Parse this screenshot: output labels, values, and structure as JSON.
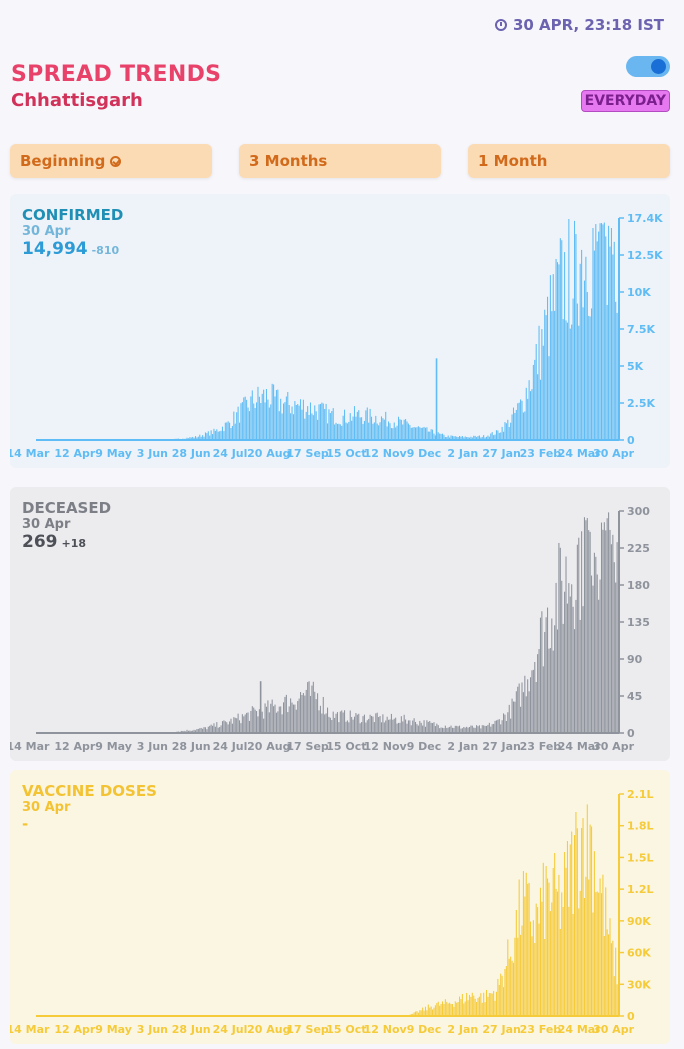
{
  "header": {
    "timestamp": "30 APR, 23:18 IST",
    "title": "SPREAD TRENDS",
    "region": "Chhattisgarh",
    "mode": "EVERYDAY",
    "clock_icon": "clock-icon"
  },
  "ranges": [
    {
      "label": "Beginning",
      "selected": true
    },
    {
      "label": "3 Months",
      "selected": false
    },
    {
      "label": "1 Month",
      "selected": false
    }
  ],
  "charts": {
    "confirmed": {
      "name": "CONFIRMED",
      "date": "30 Apr",
      "value": "14,994",
      "delta": "-810"
    },
    "deceased": {
      "name": "DECEASED",
      "date": "30 Apr",
      "value": "269",
      "delta": "+18"
    },
    "vaccine": {
      "name": "VACCINE DOSES",
      "date": "30 Apr",
      "value": "-"
    }
  },
  "x_ticks": [
    "14 Mar",
    "12 Apr",
    "9 May",
    "3 Jun",
    "28 Jun",
    "24 Jul",
    "20 Aug",
    "17 Sep",
    "15 Oct",
    "12 Nov",
    "9 Dec",
    "2 Jan",
    "27 Jan",
    "23 Feb",
    "24 Mar",
    "30 Apr"
  ],
  "colors": {
    "confirmed": "#5fbcf4",
    "deceased": "#8e939c",
    "vaccine": "#f5cb3a"
  },
  "chart_data": [
    {
      "type": "bar",
      "name": "CONFIRMED",
      "x_ticks": [
        "14 Mar",
        "12 Apr",
        "9 May",
        "3 Jun",
        "28 Jun",
        "24 Jul",
        "20 Aug",
        "17 Sep",
        "15 Oct",
        "12 Nov",
        "9 Dec",
        "2 Jan",
        "27 Jan",
        "23 Feb",
        "24 Mar",
        "30 Apr"
      ],
      "y_ticks": [
        "0",
        "2.5K",
        "5K",
        "7.5K",
        "10K",
        "12.5K",
        "17.4K"
      ],
      "ylim": [
        0,
        17400
      ],
      "series_keypoints": [
        [
          0,
          0
        ],
        [
          14,
          0
        ],
        [
          19,
          0
        ],
        [
          22,
          80
        ],
        [
          25,
          250
        ],
        [
          28,
          700
        ],
        [
          30,
          1300
        ],
        [
          32,
          2300
        ],
        [
          34,
          3200
        ],
        [
          36,
          3500
        ],
        [
          38,
          3000
        ],
        [
          40,
          2800
        ],
        [
          42,
          2700
        ],
        [
          44,
          2400
        ],
        [
          46,
          2000
        ],
        [
          48,
          1800
        ],
        [
          50,
          2000
        ],
        [
          52,
          1900
        ],
        [
          54,
          1700
        ],
        [
          56,
          1500
        ],
        [
          58,
          1200
        ],
        [
          60,
          900
        ],
        [
          62,
          600
        ],
        [
          64,
          300
        ],
        [
          66,
          250
        ],
        [
          68,
          250
        ],
        [
          70,
          300
        ],
        [
          72,
          600
        ],
        [
          74,
          1500
        ],
        [
          76,
          3000
        ],
        [
          78,
          6000
        ],
        [
          80,
          9500
        ],
        [
          82,
          12500
        ],
        [
          84,
          14000
        ],
        [
          86,
          15000
        ],
        [
          88,
          16000
        ],
        [
          90,
          16500
        ],
        [
          91,
          15000
        ]
      ],
      "spike": {
        "at": 62.5,
        "value": 6400
      }
    },
    {
      "type": "bar",
      "name": "DECEASED",
      "x_ticks": [
        "14 Mar",
        "12 Apr",
        "9 May",
        "3 Jun",
        "28 Jun",
        "24 Jul",
        "20 Aug",
        "17 Sep",
        "15 Oct",
        "12 Nov",
        "9 Dec",
        "2 Jan",
        "27 Jan",
        "23 Feb",
        "24 Mar",
        "30 Apr"
      ],
      "y_ticks": [
        "0",
        "45",
        "90",
        "135",
        "180",
        "225",
        "300"
      ],
      "ylim": [
        0,
        300
      ],
      "series_keypoints": [
        [
          0,
          0
        ],
        [
          18,
          0
        ],
        [
          22,
          2
        ],
        [
          26,
          6
        ],
        [
          30,
          15
        ],
        [
          34,
          28
        ],
        [
          37,
          35
        ],
        [
          40,
          45
        ],
        [
          42,
          55
        ],
        [
          44,
          50
        ],
        [
          46,
          25
        ],
        [
          50,
          22
        ],
        [
          54,
          20
        ],
        [
          58,
          18
        ],
        [
          62,
          12
        ],
        [
          66,
          8
        ],
        [
          70,
          8
        ],
        [
          72,
          15
        ],
        [
          74,
          30
        ],
        [
          76,
          60
        ],
        [
          78,
          110
        ],
        [
          80,
          160
        ],
        [
          82,
          200
        ],
        [
          84,
          230
        ],
        [
          86,
          260
        ],
        [
          88,
          290
        ],
        [
          91,
          285
        ]
      ],
      "spike": {
        "at": 35,
        "value": 70
      }
    },
    {
      "type": "bar",
      "name": "VACCINE DOSES",
      "x_ticks": [
        "14 Mar",
        "12 Apr",
        "9 May",
        "3 Jun",
        "28 Jun",
        "24 Jul",
        "20 Aug",
        "17 Sep",
        "15 Oct",
        "12 Nov",
        "9 Dec",
        "2 Jan",
        "27 Jan",
        "23 Feb",
        "24 Mar",
        "30 Apr"
      ],
      "y_ticks": [
        "0",
        "30K",
        "60K",
        "90K",
        "1.2L",
        "1.5L",
        "1.8L",
        "2.1L"
      ],
      "ylim": [
        0,
        210000
      ],
      "series_keypoints": [
        [
          0,
          0
        ],
        [
          58,
          0
        ],
        [
          60,
          5000
        ],
        [
          62,
          10000
        ],
        [
          64,
          12000
        ],
        [
          66,
          15000
        ],
        [
          68,
          20000
        ],
        [
          70,
          18000
        ],
        [
          72,
          25000
        ],
        [
          74,
          60000
        ],
        [
          76,
          110000
        ],
        [
          78,
          90000
        ],
        [
          80,
          120000
        ],
        [
          82,
          110000
        ],
        [
          84,
          150000
        ],
        [
          86,
          190000
        ],
        [
          88,
          130000
        ],
        [
          90,
          60000
        ],
        [
          91,
          40000
        ]
      ],
      "spike": null
    }
  ]
}
